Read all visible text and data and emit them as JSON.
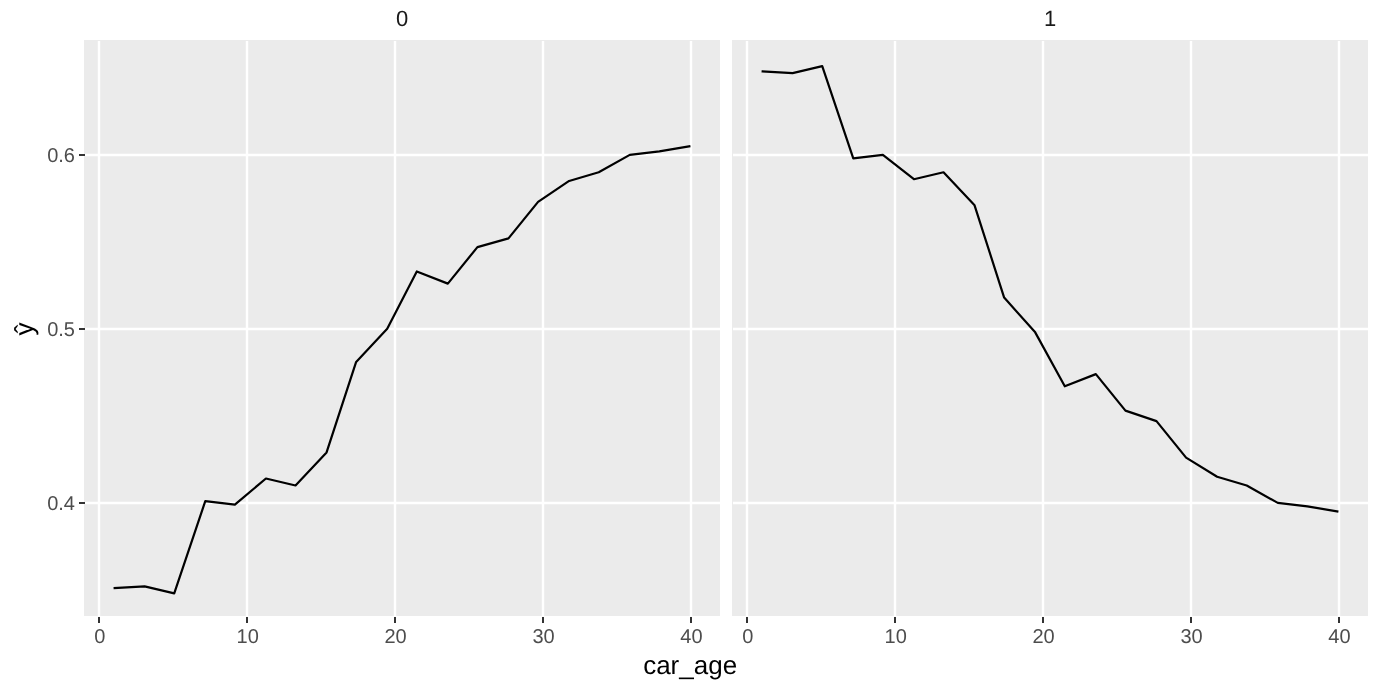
{
  "chart_data": [
    {
      "type": "line",
      "title": "0",
      "xlabel": "car_age",
      "ylabel": "ŷ",
      "x": [
        1,
        3.1,
        5.1,
        7.2,
        9.2,
        11.3,
        13.3,
        15.4,
        17.4,
        19.5,
        21.5,
        23.6,
        25.6,
        27.7,
        29.7,
        31.8,
        33.8,
        35.9,
        37.9,
        40
      ],
      "series": [
        {
          "color": "#000000",
          "values": [
            0.351,
            0.352,
            0.348,
            0.401,
            0.399,
            0.414,
            0.41,
            0.429,
            0.481,
            0.5,
            0.533,
            0.526,
            0.547,
            0.552,
            0.573,
            0.585,
            0.59,
            0.6,
            0.602,
            0.605
          ]
        }
      ],
      "xlim": [
        -1,
        42
      ],
      "ylim": [
        0.335,
        0.666
      ],
      "xticks": [
        0,
        10,
        20,
        30,
        40
      ],
      "yticks": [
        0.4,
        0.5,
        0.6
      ],
      "grid": true
    },
    {
      "type": "line",
      "title": "1",
      "x": [
        1,
        3.1,
        5.1,
        7.2,
        9.2,
        11.3,
        13.3,
        15.4,
        17.4,
        19.5,
        21.5,
        23.6,
        25.6,
        27.7,
        29.7,
        31.8,
        33.8,
        35.9,
        37.9,
        40
      ],
      "series": [
        {
          "color": "#000000",
          "values": [
            0.648,
            0.647,
            0.651,
            0.598,
            0.6,
            0.586,
            0.59,
            0.571,
            0.518,
            0.498,
            0.467,
            0.474,
            0.453,
            0.447,
            0.426,
            0.415,
            0.41,
            0.4,
            0.398,
            0.395
          ]
        }
      ],
      "xlim": [
        -1,
        42
      ],
      "ylim": [
        0.335,
        0.666
      ],
      "xticks": [
        0,
        10,
        20,
        30,
        40
      ],
      "yticks": [
        0.4,
        0.5,
        0.6
      ],
      "grid": true,
      "tick_labels": "x"
    }
  ]
}
